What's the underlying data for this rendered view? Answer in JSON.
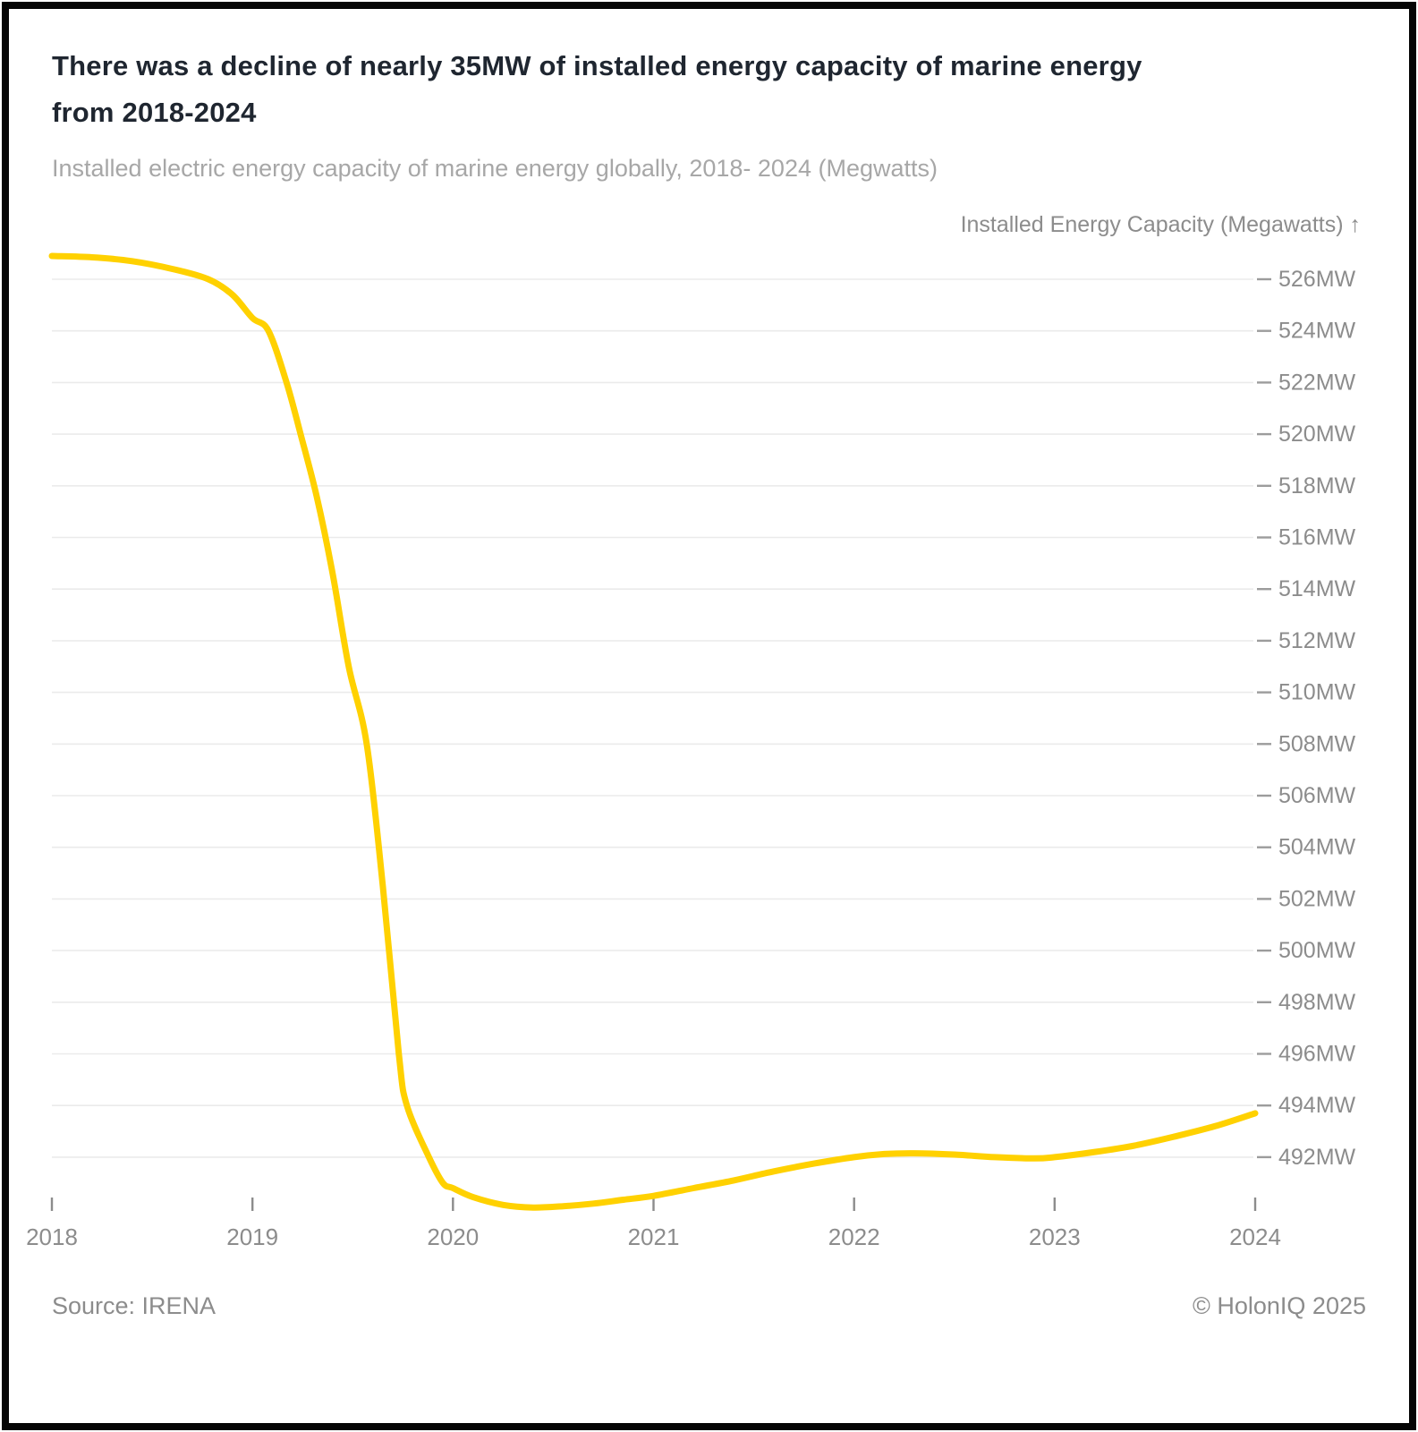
{
  "header": {
    "title_line1": "There was a decline of nearly 35MW of installed energy capacity of marine energy",
    "title_line2": "from 2018-2024"
  },
  "footer": {
    "source": "Source: IRENA",
    "copyright": "© HolonIQ 2025"
  },
  "chart_data": {
    "type": "line",
    "title": "There was a decline of nearly 35MW of installed energy capacity of marine energy from 2018-2024",
    "subtitle": "Installed electric energy capacity of marine energy globally, 2018- 2024 (Megwatts)",
    "ylabel": "Installed Energy Capacity (Megawatts) ↑",
    "xlabel": "",
    "series_name": "Installed electric energy capacity of marine energy",
    "unit": "MW",
    "categories": [
      2018,
      2019,
      2020,
      2021,
      2022,
      2023,
      2024
    ],
    "x_tick_labels": [
      "2018",
      "2019",
      "2020",
      "2021",
      "2022",
      "2023",
      "2024"
    ],
    "values": [
      526.9,
      524.5,
      490.9,
      490.5,
      492.0,
      492.0,
      493.7
    ],
    "y_tick_values": [
      526,
      524,
      522,
      520,
      518,
      516,
      514,
      512,
      510,
      508,
      506,
      504,
      502,
      500,
      498,
      496,
      494,
      492
    ],
    "y_tick_labels": [
      "526MW",
      "524MW",
      "522MW",
      "520MW",
      "518MW",
      "516MW",
      "514MW",
      "512MW",
      "510MW",
      "508MW",
      "506MW",
      "504MW",
      "502MW",
      "500MW",
      "498MW",
      "496MW",
      "494MW",
      "492MW"
    ],
    "ylim": [
      489.5,
      527.5
    ],
    "grid": "horizontal-only",
    "legend": "none",
    "line_color": "#FFD100",
    "grid_color": "#ebebeb",
    "tick_mark_color": "#9c9c9c",
    "tick_label_color": "#8c8c8c",
    "curve_points": [
      [
        2018.0,
        526.9
      ],
      [
        2018.2,
        526.85
      ],
      [
        2018.4,
        526.7
      ],
      [
        2018.6,
        526.4
      ],
      [
        2018.78,
        526.0
      ],
      [
        2018.9,
        525.4
      ],
      [
        2019.0,
        524.5
      ],
      [
        2019.08,
        524.0
      ],
      [
        2019.17,
        522.0
      ],
      [
        2019.24,
        520.0
      ],
      [
        2019.32,
        517.6
      ],
      [
        2019.4,
        514.6
      ],
      [
        2019.48,
        511.0
      ],
      [
        2019.57,
        508.0
      ],
      [
        2019.65,
        502.5
      ],
      [
        2019.73,
        496.0
      ],
      [
        2019.77,
        494.0
      ],
      [
        2019.88,
        492.0
      ],
      [
        2019.95,
        491.0
      ],
      [
        2020.0,
        490.8
      ],
      [
        2020.1,
        490.45
      ],
      [
        2020.25,
        490.15
      ],
      [
        2020.4,
        490.05
      ],
      [
        2020.55,
        490.1
      ],
      [
        2020.7,
        490.2
      ],
      [
        2020.85,
        490.35
      ],
      [
        2021.0,
        490.5
      ],
      [
        2021.2,
        490.8
      ],
      [
        2021.4,
        491.1
      ],
      [
        2021.6,
        491.45
      ],
      [
        2021.8,
        491.75
      ],
      [
        2022.0,
        492.0
      ],
      [
        2022.15,
        492.12
      ],
      [
        2022.3,
        492.15
      ],
      [
        2022.5,
        492.1
      ],
      [
        2022.7,
        492.0
      ],
      [
        2022.9,
        491.95
      ],
      [
        2023.0,
        492.0
      ],
      [
        2023.2,
        492.2
      ],
      [
        2023.4,
        492.45
      ],
      [
        2023.6,
        492.8
      ],
      [
        2023.8,
        493.2
      ],
      [
        2024.0,
        493.7
      ]
    ]
  }
}
